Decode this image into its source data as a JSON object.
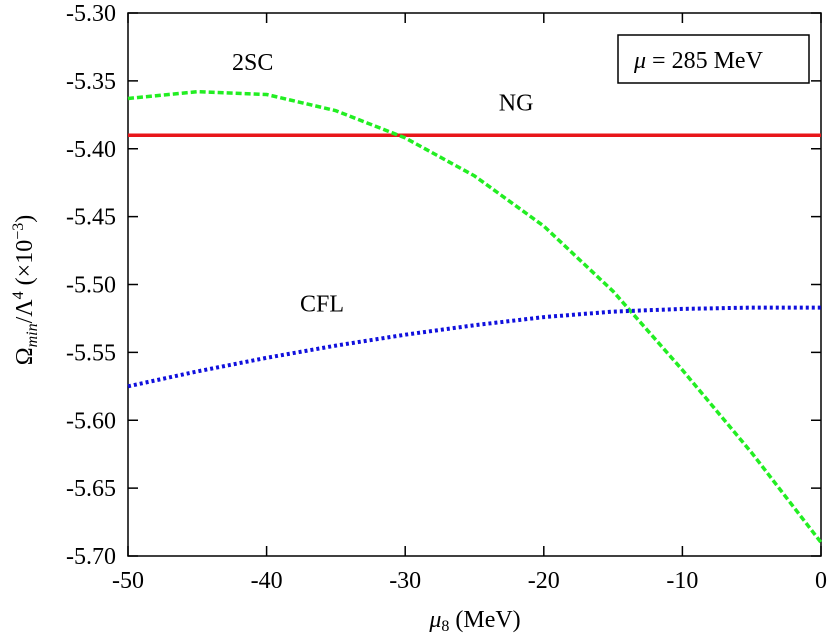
{
  "chart_data": {
    "type": "line",
    "xlabel": {
      "symbol": "μ",
      "sub": "8",
      "rest": " (MeV)"
    },
    "ylabel": {
      "omega": "Ω",
      "sub": "min",
      "mid": "/Λ",
      "sup": "4",
      "rest1": " (×10",
      "exp": "−3",
      "rest2": ")"
    },
    "annotation": {
      "mu": "μ",
      "rest": " = 285 MeV"
    },
    "xlim": [
      -50,
      0
    ],
    "ylim": [
      -5.7,
      -5.3
    ],
    "x_ticks": [
      -50,
      -40,
      -30,
      -20,
      -10,
      0
    ],
    "x_tick_labels": [
      "-50",
      "-40",
      "-30",
      "-20",
      "-10",
      "0"
    ],
    "y_ticks": [
      -5.3,
      -5.35,
      -5.4,
      -5.45,
      -5.5,
      -5.55,
      -5.6,
      -5.65,
      -5.7
    ],
    "y_tick_labels": [
      "-5.30",
      "-5.35",
      "-5.40",
      "-5.45",
      "-5.50",
      "-5.55",
      "-5.60",
      "-5.65",
      "-5.70"
    ],
    "grid": false,
    "series": [
      {
        "name": "NG",
        "color": "#e8161a",
        "style": "solid",
        "x": [
          -50,
          0
        ],
        "y": [
          -5.39,
          -5.39
        ],
        "label_at": [
          -22,
          -5.372
        ]
      },
      {
        "name": "2SC",
        "color": "#22ee22",
        "style": "dashed",
        "x": [
          -50,
          -45,
          -40,
          -35,
          -30,
          -25,
          -20,
          -15,
          -10,
          -5,
          0
        ],
        "y": [
          -5.363,
          -5.358,
          -5.36,
          -5.372,
          -5.392,
          -5.42,
          -5.457,
          -5.505,
          -5.563,
          -5.624,
          -5.69
        ],
        "label_at": [
          -41,
          -5.342
        ]
      },
      {
        "name": "CFL",
        "color": "#1010dd",
        "style": "dotted",
        "x": [
          -50,
          -45,
          -40,
          -35,
          -30,
          -25,
          -20,
          -15,
          -10,
          -5,
          0
        ],
        "y": [
          -5.575,
          -5.564,
          -5.554,
          -5.545,
          -5.537,
          -5.53,
          -5.524,
          -5.52,
          -5.518,
          -5.517,
          -5.517
        ],
        "label_at": [
          -36,
          -5.52
        ]
      }
    ]
  }
}
